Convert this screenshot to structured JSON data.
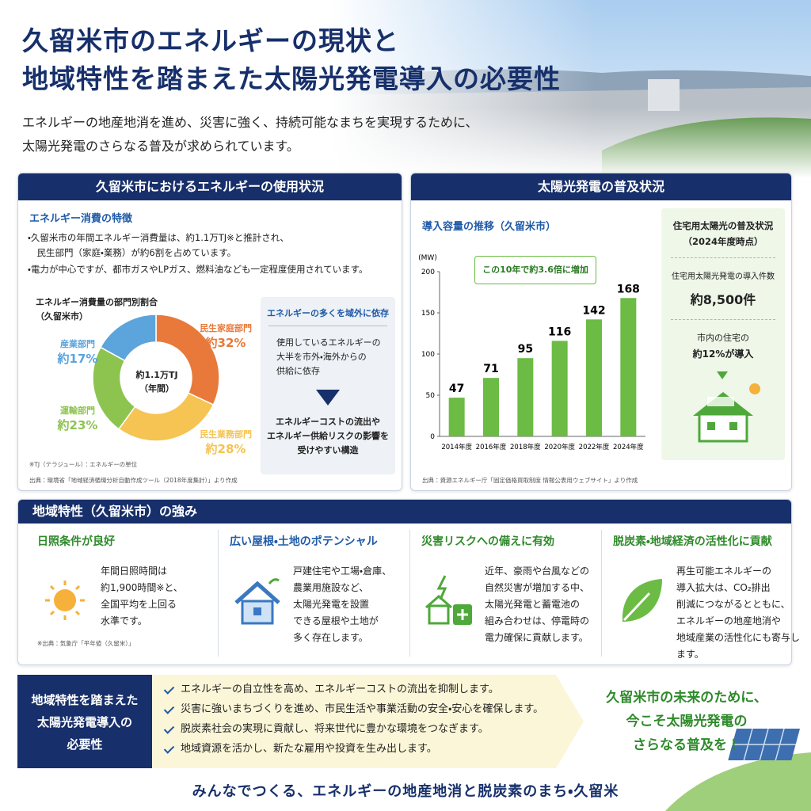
{
  "header": {
    "title_lines": [
      "久留米市のエネルギーの現状と",
      "地域特性を踏まえた太陽光発電導入の必要性"
    ],
    "lead_lines": [
      "エネルギーの地産地消を進め、災害に強く、持続可能なまちを実現するために、",
      "太陽光発電のさらなる普及が求められています。"
    ]
  },
  "usage": {
    "heading": "久留米市におけるエネルギーの使用状況",
    "sub": "エネルギー消費の特徴",
    "bullets": [
      "・久留米市の年間エネルギー消費量は、約1.1万TJ※と推計され、\n　民生部門（家庭・業務）が約6割を占めています。",
      "・電力が中心ですが、都市ガスやLPガス、燃料油なども一定程度使用されています。"
    ],
    "note": "※TJ（テラジュール）：エネルギーの単位",
    "source": "出典：環境省「地域経済循環分析自動作成ツール（2018年度集計）」より作成",
    "callout": {
      "title": "エネルギーの多くを域外に依存",
      "text": "使用しているエネルギーの\n大半を市外・海外からの\n供給に依存",
      "result": "エネルギーコストの流出や\nエネルギー供給リスクの影響を\n受けやすい構造"
    }
  },
  "solar": {
    "heading": "太陽光発電の普及状況",
    "source": "出典：資源エネルギー庁「固定価格買取制度 情報公表用ウェブサイト」より作成",
    "residential": {
      "title": "住宅用太陽光の普及状況\n（2024年度時点）",
      "count_label": "住宅用太陽光発電の導入件数",
      "count": "約8,500件",
      "share_label": "市内の住宅の",
      "share": "約12%が導入"
    }
  },
  "chart_data": [
    {
      "type": "donut",
      "title": "エネルギー消費量の部門別割合\n（久留米市）",
      "center_label": "約1.1万TJ\n（年間）",
      "categories": [
        "民生家庭部門",
        "民生業務部門",
        "運輸部門",
        "産業部門"
      ],
      "values": [
        32,
        28,
        23,
        17
      ],
      "value_labels": [
        "約32%",
        "約28%",
        "約23%",
        "約17%"
      ],
      "colors": [
        "#e8793a",
        "#f5c452",
        "#8dc450",
        "#5ba4dc"
      ]
    },
    {
      "type": "bar",
      "title": "導入容量の推移（久留米市）",
      "y_label": "(MW)",
      "annotation": "この10年で約3.6倍に増加",
      "categories": [
        "2014年度",
        "2016年度",
        "2018年度",
        "2020年度",
        "2022年度",
        "2024年度"
      ],
      "values": [
        47,
        71,
        95,
        116,
        142,
        168
      ],
      "color": "#6cbb45",
      "ylim": [
        0,
        200
      ],
      "yticks": [
        0,
        50,
        100,
        150,
        200
      ]
    }
  ],
  "strengths": {
    "heading": "地域特性（久留米市）の強み",
    "items": [
      {
        "title": "日照条件が良好",
        "text": "年間日照時間は\n約1,900時間※と、\n全国平均を上回る\n水準です。",
        "note": "※出典：気象庁「平年値（久留米）」"
      },
      {
        "title": "広い屋根・土地のポテンシャル",
        "text": "戸建住宅や工場・倉庫、\n農業用施設など、\n太陽光発電を設置\nできる屋根や土地が\n多く存在します。"
      },
      {
        "title": "災害リスクへの備えに有効",
        "text": "近年、豪雨や台風などの\n自然災害が増加する中、\n太陽光発電と蓄電池の\n組み合わせは、停電時の\n電力確保に貢献します。"
      },
      {
        "title": "脱炭素・地域経済の活性化に貢献",
        "text": "再生可能エネルギーの\n導入拡大は、CO₂排出\n削減につながるとともに、\nエネルギーの地産地消や\n地域産業の活性化にも寄与します。"
      }
    ]
  },
  "necessity": {
    "label": "地域特性を踏まえた\n太陽光発電導入の\n必要性",
    "points": [
      "エネルギーの自立性を高め、エネルギーコストの流出を抑制します。",
      "災害に強いまちづくりを進め、市民生活や事業活動の安全・安心を確保します。",
      "脱炭素社会の実現に貢献し、将来世代に豊かな環境をつなぎます。",
      "地域資源を活かし、新たな雇用や投資を生み出します。"
    ],
    "message": "久留米市の未来のために、\n今こそ太陽光発電の\nさらなる普及を！"
  },
  "footer": {
    "slogan": "みんなでつくる、エネルギーの地産地消と脱炭素のまち・久留米"
  }
}
